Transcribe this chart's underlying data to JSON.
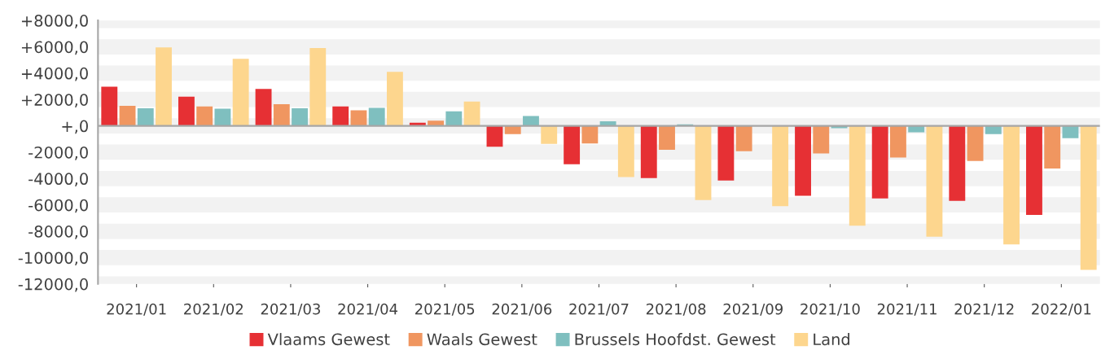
{
  "chart_data": {
    "type": "bar",
    "categories": [
      "2021/01",
      "2021/02",
      "2021/03",
      "2021/04",
      "2021/05",
      "2021/06",
      "2021/07",
      "2021/08",
      "2021/09",
      "2021/10",
      "2021/11",
      "2021/12",
      "2022/01"
    ],
    "series": [
      {
        "name": "Vlaams Gewest",
        "color": "#e63034",
        "values": [
          2980,
          2220,
          2810,
          1480,
          240,
          -1590,
          -2910,
          -3970,
          -4150,
          -5300,
          -5510,
          -5690,
          -6760
        ]
      },
      {
        "name": "Waals Gewest",
        "color": "#f09660",
        "values": [
          1520,
          1480,
          1640,
          1180,
          400,
          -620,
          -1340,
          -1810,
          -1930,
          -2100,
          -2410,
          -2670,
          -3230
        ]
      },
      {
        "name": "Brussels Hoofdst. Gewest",
        "color": "#7fbfbf",
        "values": [
          1340,
          1310,
          1340,
          1370,
          1100,
          750,
          350,
          110,
          0,
          -180,
          -480,
          -630,
          -930
        ]
      },
      {
        "name": "Land",
        "color": "#fdd68e",
        "values": [
          5950,
          5090,
          5900,
          4100,
          1850,
          -1360,
          -3880,
          -5630,
          -6100,
          -7580,
          -8410,
          -9000,
          -10930
        ]
      }
    ],
    "ylim": [
      -12000,
      8000
    ],
    "yticks": [
      {
        "value": -12000,
        "label": "-12000,0"
      },
      {
        "value": -10000,
        "label": "-10000,0"
      },
      {
        "value": -8000,
        "label": "-8000,0"
      },
      {
        "value": -6000,
        "label": "-6000,0"
      },
      {
        "value": -4000,
        "label": "-4000,0"
      },
      {
        "value": -2000,
        "label": "-2000,0"
      },
      {
        "value": 0,
        "label": "+,0"
      },
      {
        "value": 2000,
        "label": "+2000,0"
      },
      {
        "value": 4000,
        "label": "+4000,0"
      },
      {
        "value": 6000,
        "label": "+6000,0"
      },
      {
        "value": 8000,
        "label": "+8000,0"
      }
    ],
    "grid": "y",
    "legend": "bottom"
  }
}
